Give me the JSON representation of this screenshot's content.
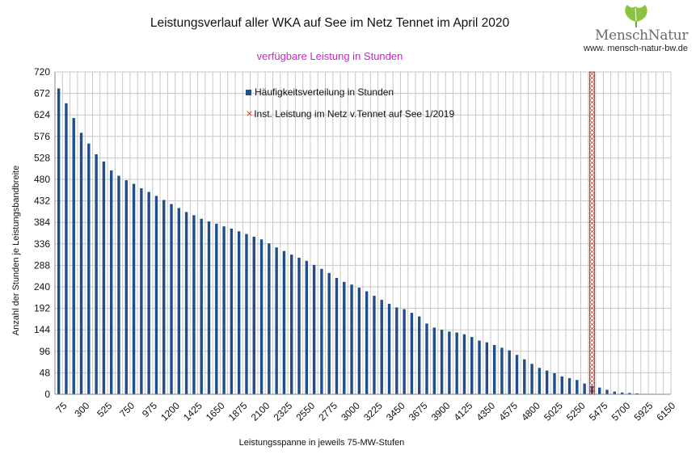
{
  "title": "Leistungsverlauf aller WKA auf See im Netz Tennet im April 2020",
  "subtitle": "verfügbare Leistung in Stunden",
  "logo": {
    "name": "MenschNatur",
    "url": "www. mensch-natur-bw.de",
    "icon": "ginkgo-leaf-icon"
  },
  "colors": {
    "bars": "#1f4e8c",
    "marker": "#c0392b",
    "subtitle": "#cc22cc",
    "grid": "#c8c8c8"
  },
  "chart_data": {
    "type": "bar",
    "xlabel": "Leistungsspanne in jeweils 75-MW-Stufen",
    "ylabel": "Anzahl der Stunden je Leistungsbandbreite",
    "ylim": [
      0,
      720
    ],
    "yticks": [
      0,
      48,
      96,
      144,
      192,
      240,
      288,
      336,
      384,
      432,
      480,
      528,
      576,
      624,
      672,
      720
    ],
    "xtick_labels": [
      75,
      300,
      525,
      750,
      975,
      1200,
      1425,
      1650,
      1875,
      2100,
      2325,
      2550,
      2775,
      3000,
      3225,
      3450,
      3675,
      3900,
      4125,
      4350,
      4575,
      4800,
      5025,
      5250,
      5475,
      5700,
      5925,
      6150
    ],
    "categories": [
      75,
      150,
      225,
      300,
      375,
      450,
      525,
      600,
      675,
      750,
      825,
      900,
      975,
      1050,
      1125,
      1200,
      1275,
      1350,
      1425,
      1500,
      1575,
      1650,
      1725,
      1800,
      1875,
      1950,
      2025,
      2100,
      2175,
      2250,
      2325,
      2400,
      2475,
      2550,
      2625,
      2700,
      2775,
      2850,
      2925,
      3000,
      3075,
      3150,
      3225,
      3300,
      3375,
      3450,
      3525,
      3600,
      3675,
      3750,
      3825,
      3900,
      3975,
      4050,
      4125,
      4200,
      4275,
      4350,
      4425,
      4500,
      4575,
      4650,
      4725,
      4800,
      4875,
      4950,
      5025,
      5100,
      5175,
      5250,
      5325,
      5400,
      5475,
      5550,
      5625,
      5700,
      5775,
      5850,
      5925,
      6000,
      6075,
      6150
    ],
    "series": [
      {
        "name": "Häufigkeitsverteilung in Stunden",
        "values": [
          683,
          650,
          617,
          584,
          560,
          536,
          520,
          500,
          488,
          478,
          470,
          460,
          452,
          443,
          434,
          425,
          416,
          407,
          400,
          392,
          386,
          381,
          375,
          370,
          364,
          358,
          352,
          346,
          337,
          328,
          320,
          312,
          305,
          298,
          289,
          280,
          271,
          260,
          251,
          245,
          238,
          230,
          220,
          211,
          202,
          194,
          190,
          182,
          174,
          158,
          149,
          144,
          140,
          138,
          134,
          128,
          120,
          116,
          110,
          104,
          98,
          88,
          78,
          68,
          59,
          53,
          47,
          40,
          36,
          32,
          24,
          18,
          15,
          10,
          6,
          4,
          3,
          2,
          1,
          1,
          1,
          0
        ]
      }
    ],
    "marker": {
      "name": "Inst. Leistung im Netz v.Tennet auf See 1/2019",
      "x": 5400
    },
    "legend_position": "top-center",
    "grid": true
  }
}
